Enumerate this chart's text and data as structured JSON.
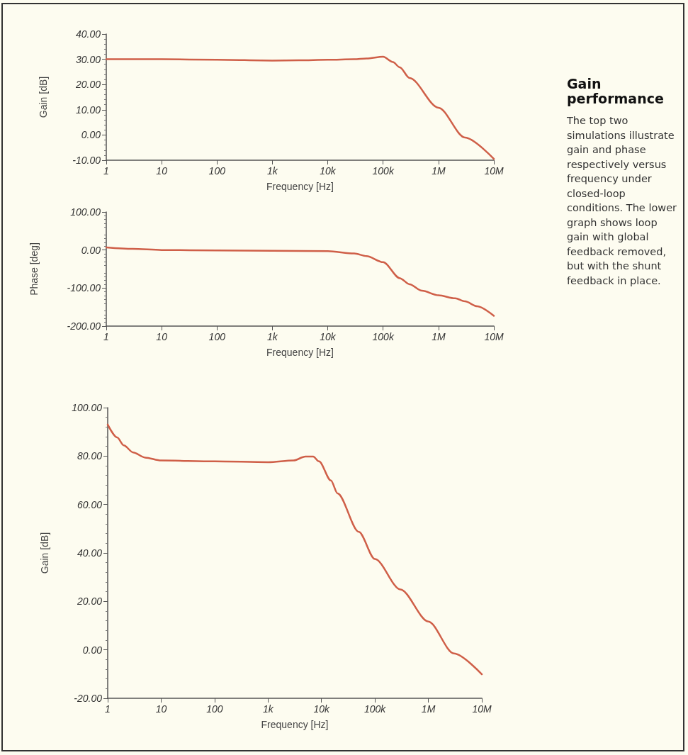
{
  "chart_data": [
    {
      "type": "other",
      "title": "Gain performance",
      "annotations": [
        "The top two simulations illustrate gain and phase respectively versus frequency under closed-loop conditions. The lower graph shows loop gain with global feedback removed, but with the shunt feedback in place."
      ]
    },
    {
      "type": "line",
      "xlabel": "Frequency [Hz]",
      "ylabel": "Gain [dB]",
      "log": "x",
      "grid": false,
      "marker": "none",
      "line_style": "solid",
      "xlim": [
        1,
        10000000
      ],
      "ylim": [
        -10,
        40
      ],
      "xticks": [
        1,
        10,
        100,
        {
          "value": 1000,
          "label": "1k"
        },
        {
          "value": 10000,
          "label": "10k"
        },
        {
          "value": 100000,
          "label": "100k"
        },
        {
          "value": 1000000,
          "label": "1M"
        },
        {
          "value": 10000000,
          "label": "10M"
        }
      ],
      "yticks": [
        {
          "value": -10,
          "label": "-10.00"
        },
        {
          "value": 0,
          "label": "0.00"
        },
        {
          "value": 10,
          "label": "10.00"
        },
        {
          "value": 20,
          "label": "20.00"
        },
        {
          "value": 30,
          "label": "30.00"
        },
        {
          "value": 40,
          "label": "40.00"
        }
      ],
      "series": [
        {
          "color": "#cf5f48",
          "x": [
            1,
            10,
            100,
            1000,
            3000,
            10000,
            30000,
            50000,
            100000,
            150000,
            200000,
            300000,
            1000000,
            3000000,
            10000000
          ],
          "values": [
            30,
            30,
            29.8,
            29.5,
            29.6,
            29.8,
            30,
            30.3,
            31,
            28.9,
            26.8,
            22.6,
            10.8,
            -1,
            -9.5
          ]
        }
      ]
    },
    {
      "type": "line",
      "xlabel": "Frequency [Hz]",
      "ylabel": "Phase [deg]",
      "log": "x",
      "grid": false,
      "marker": "none",
      "line_style": "solid",
      "xlim": [
        1,
        10000000
      ],
      "ylim": [
        -200,
        100
      ],
      "xticks": [
        1,
        10,
        100,
        {
          "value": 1000,
          "label": "1k"
        },
        {
          "value": 10000,
          "label": "10k"
        },
        {
          "value": 100000,
          "label": "100k"
        },
        {
          "value": 1000000,
          "label": "1M"
        },
        {
          "value": 10000000,
          "label": "10M"
        }
      ],
      "yticks": [
        {
          "value": -200,
          "label": "-200.00"
        },
        {
          "value": -100,
          "label": "-100.00"
        },
        {
          "value": 0,
          "label": "0.00"
        },
        {
          "value": 100,
          "label": "100.00"
        }
      ],
      "series": [
        {
          "color": "#cf5f48",
          "x": [
            1,
            3,
            10,
            100,
            1000,
            10000,
            30000,
            50000,
            100000,
            200000,
            300000,
            500000,
            1000000,
            2000000,
            3000000,
            5000000,
            10000000
          ],
          "values": [
            7,
            3,
            0,
            -1,
            -2,
            -3,
            -9,
            -16,
            -32,
            -74,
            -90,
            -107,
            -119,
            -127,
            -135,
            -148,
            -173
          ]
        }
      ]
    },
    {
      "type": "line",
      "xlabel": "Frequency [Hz]",
      "ylabel": "Gain [dB]",
      "log": "x",
      "grid": false,
      "marker": "none",
      "line_style": "solid",
      "xlim": [
        1,
        10000000
      ],
      "ylim": [
        -20,
        100
      ],
      "xticks": [
        1,
        10,
        100,
        {
          "value": 1000,
          "label": "1k"
        },
        {
          "value": 10000,
          "label": "10k"
        },
        {
          "value": 100000,
          "label": "100k"
        },
        {
          "value": 1000000,
          "label": "1M"
        },
        {
          "value": 10000000,
          "label": "10M"
        }
      ],
      "yticks": [
        {
          "value": -20,
          "label": "-20.00"
        },
        {
          "value": 0,
          "label": "0.00"
        },
        {
          "value": 20,
          "label": "20.00"
        },
        {
          "value": 40,
          "label": "40.00"
        },
        {
          "value": 60,
          "label": "60.00"
        },
        {
          "value": 80,
          "label": "80.00"
        },
        {
          "value": 100,
          "label": "100.00"
        }
      ],
      "series": [
        {
          "color": "#cf5f48",
          "x": [
            1,
            1.5,
            2,
            3,
            5,
            10,
            100,
            1000,
            3000,
            5000,
            7000,
            9000,
            15000,
            20000,
            50000,
            100000,
            300000,
            1000000,
            3000000,
            10000000
          ],
          "values": [
            93,
            87.7,
            84.4,
            81.5,
            79.4,
            78.2,
            77.8,
            77.5,
            78.2,
            79.8,
            79.8,
            77.8,
            69.9,
            64.6,
            48.7,
            37.5,
            24.9,
            11.7,
            -1.5,
            -10.1
          ]
        }
      ]
    }
  ]
}
